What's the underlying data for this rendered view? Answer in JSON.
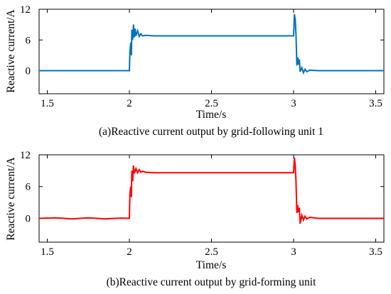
{
  "chart_data": [
    {
      "type": "line",
      "title": "",
      "caption": "(a)Reactive current output by grid-following unit 1",
      "xlabel": "Time/s",
      "ylabel": "Reactive current/A",
      "xlim": [
        1.45,
        3.55
      ],
      "ylim": [
        -4.5,
        12
      ],
      "xticks": [
        1.5,
        2,
        2.5,
        3,
        3.5
      ],
      "xtick_labels": [
        "1.5",
        "2",
        "2.5",
        "3",
        "3.5"
      ],
      "yticks": [
        0,
        6,
        12
      ],
      "ytick_labels": [
        "0",
        "6",
        "12"
      ],
      "grid": false,
      "series": [
        {
          "color": "#0072BD",
          "x": [
            1.45,
            2.0,
            2.003,
            2.008,
            2.012,
            2.015,
            2.02,
            2.025,
            2.03,
            2.035,
            2.04,
            2.05,
            2.06,
            2.07,
            2.08,
            2.1,
            2.15,
            2.5,
            2.95,
            3.0,
            3.005,
            3.01,
            3.015,
            3.02,
            3.025,
            3.03,
            3.035,
            3.04,
            3.05,
            3.06,
            3.07,
            3.08,
            3.1,
            3.15,
            3.2,
            3.55
          ],
          "y": [
            0,
            0,
            3.5,
            5.5,
            3.0,
            8.0,
            6.0,
            9.0,
            6.5,
            8.2,
            6.8,
            7.8,
            6.7,
            7.2,
            6.8,
            6.9,
            6.8,
            6.8,
            6.8,
            6.8,
            11.0,
            10.0,
            7.0,
            1.0,
            2.6,
            1.2,
            2.2,
            -0.2,
            0.6,
            -0.4,
            0.3,
            -0.2,
            0.1,
            0,
            0,
            0
          ]
        }
      ]
    },
    {
      "type": "line",
      "title": "",
      "caption": "(b)Reactive current output by grid-forming unit",
      "xlabel": "Time/s",
      "ylabel": "Reactive current/A",
      "xlim": [
        1.45,
        3.55
      ],
      "ylim": [
        -4.5,
        12
      ],
      "xticks": [
        1.5,
        2,
        2.5,
        3,
        3.5
      ],
      "xtick_labels": [
        "1.5",
        "2",
        "2.5",
        "3",
        "3.5"
      ],
      "yticks": [
        0,
        6,
        12
      ],
      "ytick_labels": [
        "0",
        "6",
        "12"
      ],
      "grid": false,
      "series": [
        {
          "color": "#FF0000",
          "x": [
            1.45,
            1.55,
            1.65,
            1.75,
            1.85,
            1.95,
            2.0,
            2.003,
            2.008,
            2.012,
            2.015,
            2.02,
            2.025,
            2.03,
            2.04,
            2.05,
            2.06,
            2.07,
            2.08,
            2.1,
            2.15,
            2.5,
            2.95,
            3.0,
            3.005,
            3.01,
            3.015,
            3.02,
            3.025,
            3.03,
            3.035,
            3.04,
            3.05,
            3.06,
            3.07,
            3.08,
            3.1,
            3.15,
            3.2,
            3.55
          ],
          "y": [
            0,
            0.1,
            -0.1,
            0.1,
            -0.1,
            0.05,
            0,
            4.5,
            6.0,
            4.0,
            9.0,
            7.0,
            10.0,
            8.5,
            9.4,
            8.6,
            9.2,
            8.7,
            8.9,
            8.7,
            8.6,
            8.6,
            8.6,
            8.6,
            11.5,
            10.0,
            7.0,
            1.0,
            2.5,
            1.2,
            2.0,
            -1.0,
            0.6,
            -0.3,
            0.4,
            -0.1,
            0.2,
            0,
            0,
            0
          ]
        }
      ]
    }
  ]
}
